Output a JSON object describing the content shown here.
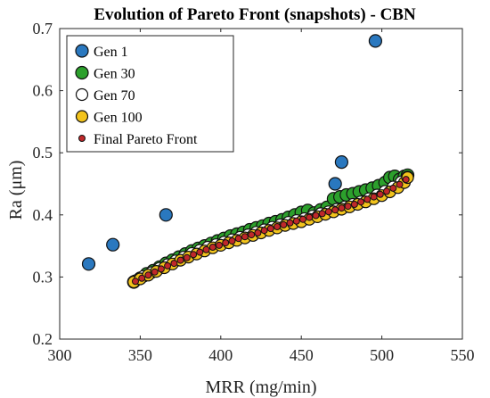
{
  "chart_data": {
    "type": "scatter",
    "title": "Evolution of Pareto Front (snapshots) - CBN",
    "xlabel": "MRR (mg/min)",
    "ylabel": "Ra (μm)",
    "xlim": [
      300,
      550
    ],
    "ylim": [
      0.2,
      0.7
    ],
    "xticks": [
      300,
      350,
      400,
      450,
      500,
      550
    ],
    "yticks": [
      0.2,
      0.3,
      0.4,
      0.5,
      0.6,
      0.7
    ],
    "grid": false,
    "legend_position": "top-left",
    "series": [
      {
        "name": "Gen 1",
        "color": "#2a78bf",
        "points": [
          [
            318,
            0.321
          ],
          [
            333,
            0.352
          ],
          [
            366,
            0.4
          ],
          [
            471,
            0.45
          ],
          [
            475,
            0.485
          ],
          [
            496,
            0.68
          ]
        ]
      },
      {
        "name": "Gen 30",
        "color": "#2ca02c",
        "points": [
          [
            346,
            0.292
          ],
          [
            350,
            0.298
          ],
          [
            354,
            0.305
          ],
          [
            358,
            0.31
          ],
          [
            362,
            0.316
          ],
          [
            366,
            0.322
          ],
          [
            370,
            0.327
          ],
          [
            374,
            0.332
          ],
          [
            378,
            0.337
          ],
          [
            382,
            0.342
          ],
          [
            386,
            0.346
          ],
          [
            390,
            0.35
          ],
          [
            394,
            0.354
          ],
          [
            398,
            0.358
          ],
          [
            402,
            0.362
          ],
          [
            406,
            0.366
          ],
          [
            410,
            0.369
          ],
          [
            414,
            0.372
          ],
          [
            418,
            0.376
          ],
          [
            422,
            0.379
          ],
          [
            426,
            0.382
          ],
          [
            430,
            0.386
          ],
          [
            434,
            0.389
          ],
          [
            438,
            0.392
          ],
          [
            442,
            0.396
          ],
          [
            446,
            0.4
          ],
          [
            450,
            0.404
          ],
          [
            454,
            0.407
          ],
          [
            458,
            0.403
          ],
          [
            462,
            0.408
          ],
          [
            466,
            0.412
          ],
          [
            470,
            0.426
          ],
          [
            474,
            0.429
          ],
          [
            478,
            0.432
          ],
          [
            482,
            0.434
          ],
          [
            486,
            0.437
          ],
          [
            490,
            0.44
          ],
          [
            494,
            0.443
          ],
          [
            498,
            0.447
          ],
          [
            502,
            0.452
          ],
          [
            505,
            0.46
          ],
          [
            508,
            0.462
          ],
          [
            511,
            0.457
          ],
          [
            514,
            0.462
          ],
          [
            516,
            0.464
          ]
        ]
      },
      {
        "name": "Gen 70",
        "color": "#ffffff",
        "points": [
          [
            347,
            0.294
          ],
          [
            352,
            0.301
          ],
          [
            357,
            0.307
          ],
          [
            362,
            0.314
          ],
          [
            367,
            0.32
          ],
          [
            372,
            0.326
          ],
          [
            377,
            0.332
          ],
          [
            382,
            0.338
          ],
          [
            387,
            0.343
          ],
          [
            392,
            0.348
          ],
          [
            397,
            0.352
          ],
          [
            402,
            0.356
          ],
          [
            407,
            0.36
          ],
          [
            412,
            0.364
          ],
          [
            417,
            0.368
          ],
          [
            422,
            0.372
          ],
          [
            427,
            0.376
          ],
          [
            432,
            0.38
          ],
          [
            437,
            0.384
          ],
          [
            442,
            0.388
          ],
          [
            447,
            0.391
          ],
          [
            452,
            0.394
          ],
          [
            457,
            0.398
          ],
          [
            462,
            0.402
          ],
          [
            467,
            0.405
          ],
          [
            472,
            0.409
          ],
          [
            477,
            0.413
          ],
          [
            482,
            0.417
          ],
          [
            487,
            0.421
          ],
          [
            492,
            0.426
          ],
          [
            497,
            0.432
          ],
          [
            502,
            0.438
          ],
          [
            507,
            0.445
          ],
          [
            512,
            0.453
          ],
          [
            516,
            0.461
          ]
        ]
      },
      {
        "name": "Gen 100",
        "color": "#f2c31c",
        "points": [
          [
            346,
            0.292
          ],
          [
            350,
            0.297
          ],
          [
            355,
            0.303
          ],
          [
            360,
            0.309
          ],
          [
            365,
            0.315
          ],
          [
            370,
            0.321
          ],
          [
            375,
            0.327
          ],
          [
            380,
            0.332
          ],
          [
            385,
            0.337
          ],
          [
            390,
            0.342
          ],
          [
            395,
            0.347
          ],
          [
            400,
            0.351
          ],
          [
            405,
            0.355
          ],
          [
            410,
            0.359
          ],
          [
            415,
            0.363
          ],
          [
            420,
            0.367
          ],
          [
            425,
            0.371
          ],
          [
            430,
            0.375
          ],
          [
            435,
            0.379
          ],
          [
            440,
            0.383
          ],
          [
            445,
            0.386
          ],
          [
            450,
            0.389
          ],
          [
            455,
            0.393
          ],
          [
            460,
            0.397
          ],
          [
            465,
            0.401
          ],
          [
            470,
            0.405
          ],
          [
            475,
            0.409
          ],
          [
            480,
            0.413
          ],
          [
            485,
            0.417
          ],
          [
            490,
            0.421
          ],
          [
            495,
            0.426
          ],
          [
            500,
            0.431
          ],
          [
            505,
            0.437
          ],
          [
            510,
            0.444
          ],
          [
            514,
            0.452
          ],
          [
            516,
            0.46
          ]
        ]
      },
      {
        "name": "Final Pareto Front",
        "color": "#c0282a",
        "points": [
          [
            347,
            0.293
          ],
          [
            351,
            0.298
          ],
          [
            355,
            0.303
          ],
          [
            359,
            0.308
          ],
          [
            363,
            0.313
          ],
          [
            367,
            0.318
          ],
          [
            371,
            0.322
          ],
          [
            375,
            0.327
          ],
          [
            379,
            0.331
          ],
          [
            383,
            0.336
          ],
          [
            387,
            0.34
          ],
          [
            391,
            0.344
          ],
          [
            395,
            0.348
          ],
          [
            399,
            0.351
          ],
          [
            403,
            0.355
          ],
          [
            407,
            0.358
          ],
          [
            411,
            0.362
          ],
          [
            415,
            0.365
          ],
          [
            419,
            0.368
          ],
          [
            423,
            0.371
          ],
          [
            427,
            0.375
          ],
          [
            431,
            0.378
          ],
          [
            435,
            0.381
          ],
          [
            439,
            0.384
          ],
          [
            443,
            0.387
          ],
          [
            447,
            0.39
          ],
          [
            451,
            0.393
          ],
          [
            455,
            0.396
          ],
          [
            459,
            0.399
          ],
          [
            463,
            0.402
          ],
          [
            467,
            0.405
          ],
          [
            471,
            0.408
          ],
          [
            475,
            0.411
          ],
          [
            479,
            0.414
          ],
          [
            483,
            0.417
          ],
          [
            487,
            0.421
          ],
          [
            491,
            0.425
          ],
          [
            495,
            0.429
          ],
          [
            499,
            0.433
          ],
          [
            503,
            0.438
          ],
          [
            507,
            0.443
          ],
          [
            511,
            0.449
          ],
          [
            515,
            0.457
          ]
        ]
      }
    ]
  }
}
